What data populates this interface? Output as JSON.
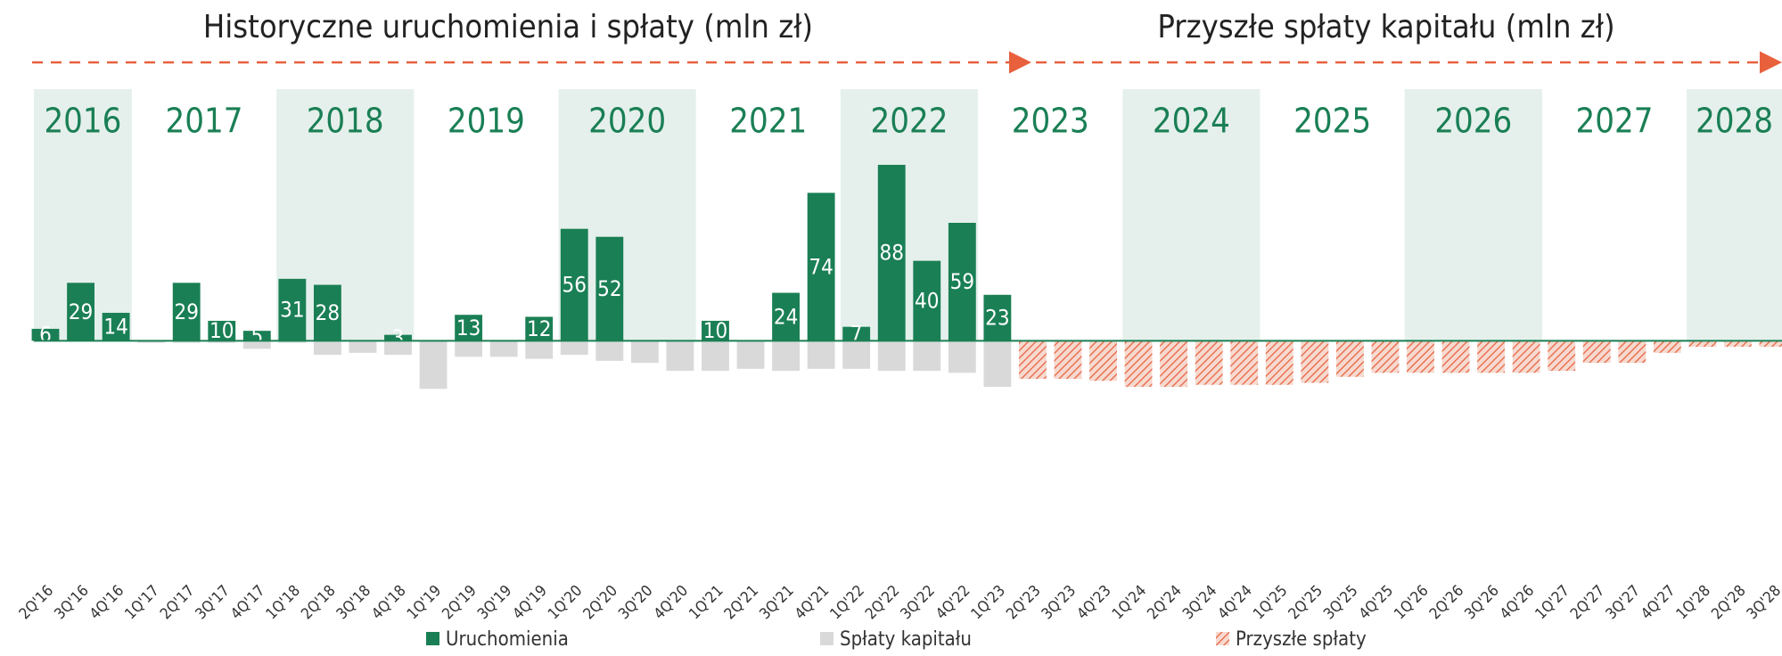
{
  "chart_data": {
    "type": "bar",
    "headers": [
      "Historyczne uruchomienia i spłaty (mln zł)",
      "Przyszłe spłaty kapitału (mln zł)"
    ],
    "years": [
      "2016",
      "2017",
      "2018",
      "2019",
      "2020",
      "2021",
      "2022",
      "2023",
      "2024",
      "2025",
      "2026",
      "2027",
      "2028"
    ],
    "categories": [
      "2Q'16",
      "3Q'16",
      "4Q'16",
      "1Q'17",
      "2Q'17",
      "3Q'17",
      "4Q'17",
      "1Q'18",
      "2Q'18",
      "3Q'18",
      "4Q'18",
      "1Q'19",
      "2Q'19",
      "3Q'19",
      "4Q'19",
      "1Q'20",
      "2Q'20",
      "3Q'20",
      "4Q'20",
      "1Q'21",
      "2Q'21",
      "3Q'21",
      "4Q'21",
      "1Q'22",
      "2Q'22",
      "3Q'22",
      "4Q'22",
      "1Q'23",
      "2Q'23",
      "3Q'23",
      "4Q'23",
      "1Q'24",
      "2Q'24",
      "3Q'24",
      "4Q'24",
      "1Q'25",
      "2Q'25",
      "3Q'25",
      "4Q'25",
      "1Q'26",
      "2Q'26",
      "3Q'26",
      "4Q'26",
      "1Q'27",
      "2Q'27",
      "3Q'27",
      "4Q'27",
      "1Q'28",
      "2Q'28",
      "3Q'28"
    ],
    "series": [
      {
        "name": "Uruchomienia",
        "color": "#1a7f55",
        "data_labels": true,
        "values": [
          6,
          29,
          14,
          null,
          29,
          10,
          5,
          31,
          28,
          null,
          3,
          null,
          13,
          null,
          12,
          56,
          52,
          null,
          null,
          10,
          null,
          24,
          74,
          7,
          88,
          40,
          59,
          23,
          null,
          null,
          null,
          null,
          null,
          null,
          null,
          null,
          null,
          null,
          null,
          null,
          null,
          null,
          null,
          null,
          null,
          null,
          null,
          null,
          null,
          null
        ]
      },
      {
        "name": "Spłaty kapitału",
        "color": "#d9d9d9",
        "values": [
          null,
          null,
          null,
          -1,
          -1,
          -1,
          -4,
          -1,
          -7,
          -6,
          -7,
          -24,
          -8,
          -8,
          -9,
          -7,
          -10,
          -11,
          -15,
          -15,
          -14,
          -15,
          -14,
          -14,
          -15,
          -15,
          -16,
          -23,
          null,
          null,
          null,
          null,
          null,
          null,
          null,
          null,
          null,
          null,
          null,
          null,
          null,
          null,
          null,
          null,
          null,
          null,
          null,
          null,
          null,
          null
        ]
      },
      {
        "name": "Przyszłe spłaty",
        "color": "#e8603c",
        "pattern": "hatch",
        "values": [
          null,
          null,
          null,
          null,
          null,
          null,
          null,
          null,
          null,
          null,
          null,
          null,
          null,
          null,
          null,
          null,
          null,
          null,
          null,
          null,
          null,
          null,
          null,
          null,
          null,
          null,
          null,
          null,
          -19,
          -19,
          -20,
          -23,
          -23,
          -22,
          -22,
          -22,
          -21,
          -18,
          -16,
          -16,
          -16,
          -16,
          -16,
          -15,
          -11,
          -11,
          -6,
          -3,
          -3,
          -3
        ]
      }
    ],
    "ylim": [
      -60,
      100
    ]
  }
}
